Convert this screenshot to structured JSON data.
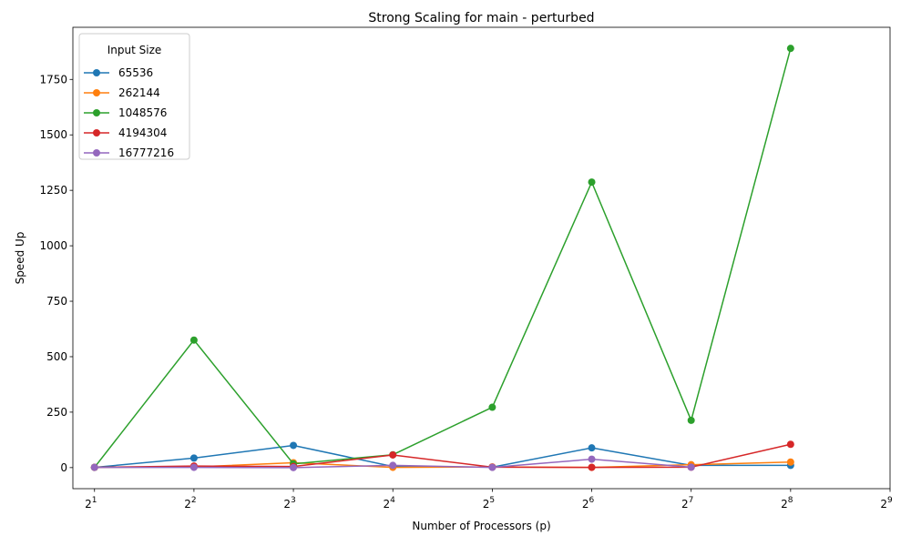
{
  "chart_data": {
    "type": "line",
    "title": "Strong Scaling for main - perturbed",
    "xlabel": "Number of Processors (p)",
    "ylabel": "Speed Up",
    "x_scale": "log2",
    "x": [
      2,
      4,
      8,
      16,
      32,
      64,
      128,
      256
    ],
    "x_ticks": [
      {
        "base": "2",
        "exp": "1"
      },
      {
        "base": "2",
        "exp": "2"
      },
      {
        "base": "2",
        "exp": "3"
      },
      {
        "base": "2",
        "exp": "4"
      },
      {
        "base": "2",
        "exp": "5"
      },
      {
        "base": "2",
        "exp": "6"
      },
      {
        "base": "2",
        "exp": "7"
      },
      {
        "base": "2",
        "exp": "8"
      },
      {
        "base": "2",
        "exp": "9"
      }
    ],
    "xlim": [
      1.72,
      512
    ],
    "ylim": [
      -95,
      1985
    ],
    "y_ticks": [
      "0",
      "250",
      "500",
      "750",
      "1000",
      "1250",
      "1500",
      "1750"
    ],
    "y_tick_values": [
      0,
      250,
      500,
      750,
      1000,
      1250,
      1500,
      1750
    ],
    "grid": false,
    "legend": {
      "title": "Input Size",
      "placement": "top-left"
    },
    "series": [
      {
        "name": "65536",
        "color": "#1f77b4",
        "values": [
          1,
          43,
          100,
          5,
          2,
          89,
          10,
          10
        ]
      },
      {
        "name": "262144",
        "color": "#ff7f0e",
        "values": [
          1,
          3,
          22,
          1,
          3,
          1,
          13,
          25
        ]
      },
      {
        "name": "1048576",
        "color": "#2ca02c",
        "values": [
          1,
          575,
          17,
          58,
          272,
          1287,
          213,
          1890
        ]
      },
      {
        "name": "4194304",
        "color": "#d62728",
        "values": [
          1,
          7,
          5,
          57,
          2,
          1,
          2,
          105
        ]
      },
      {
        "name": "16777216",
        "color": "#9467bd",
        "values": [
          1,
          1,
          0,
          10,
          1,
          38,
          2,
          null
        ]
      }
    ]
  }
}
